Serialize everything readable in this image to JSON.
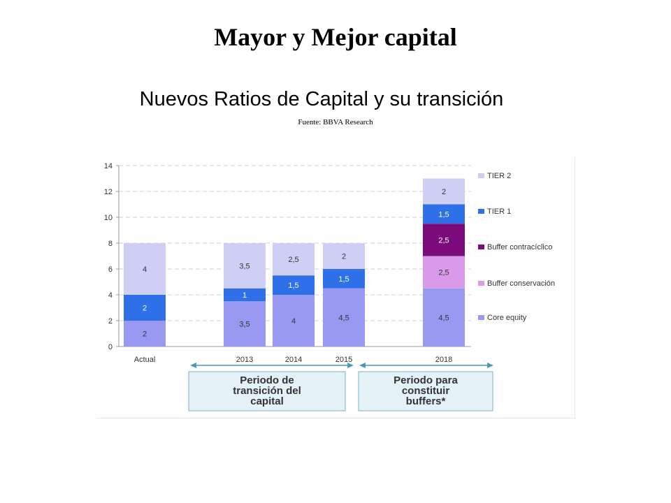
{
  "title": "Mayor y Mejor capital",
  "subtitle": "Nuevos Ratios de Capital y su transición",
  "source": "Fuente: BBVA Research",
  "chart_data": {
    "type": "bar",
    "stacked": true,
    "categories": [
      "Actual",
      "2013",
      "2014",
      "2015",
      "2018"
    ],
    "ylim": [
      0,
      14
    ],
    "yticks": [
      0,
      2,
      4,
      6,
      8,
      10,
      12,
      14
    ],
    "grid": true,
    "legend_position": "right",
    "series": [
      {
        "name": "Core equity",
        "color": "#9999f2",
        "values": [
          2,
          3.5,
          4,
          4.5,
          4.5
        ],
        "labels": [
          "2",
          "3,5",
          "4",
          "4,5",
          "4,5"
        ]
      },
      {
        "name": "Buffer conservación",
        "color": "#d99be9",
        "values": [
          0,
          0,
          0,
          0,
          2.5
        ],
        "labels": [
          "",
          "",
          "",
          "",
          "2,5"
        ]
      },
      {
        "name": "Buffer contracíclico",
        "color": "#7b0a7b",
        "values": [
          0,
          0,
          0,
          0,
          2.5
        ],
        "labels": [
          "",
          "",
          "",
          "",
          "2,5"
        ]
      },
      {
        "name": "TIER 1",
        "color": "#2f6fe8",
        "values": [
          2,
          1,
          1.5,
          1.5,
          1.5
        ],
        "labels": [
          "2",
          "1",
          "1,5",
          "1,5",
          "1,5"
        ]
      },
      {
        "name": "TIER 2",
        "color": "#cfcff5",
        "values": [
          4,
          3.5,
          2.5,
          2,
          2
        ],
        "labels": [
          "4",
          "3,5",
          "2,5",
          "2",
          "2"
        ]
      }
    ],
    "legend_order": [
      "TIER 2",
      "TIER 1",
      "Buffer contracíclico",
      "Buffer conservación",
      "Core equity"
    ],
    "periods": [
      {
        "label": "Periodo de transición del capital",
        "lines": [
          "Periodo de",
          "transición del",
          "capital"
        ]
      },
      {
        "label": "Periodo para constituir buffers*",
        "lines": [
          "Periodo para",
          "constituir",
          "buffers*"
        ]
      }
    ],
    "period_box_color": "#e4f1f7",
    "period_border_color": "#8fbfd3",
    "arrow_color": "#4a9ab3"
  }
}
